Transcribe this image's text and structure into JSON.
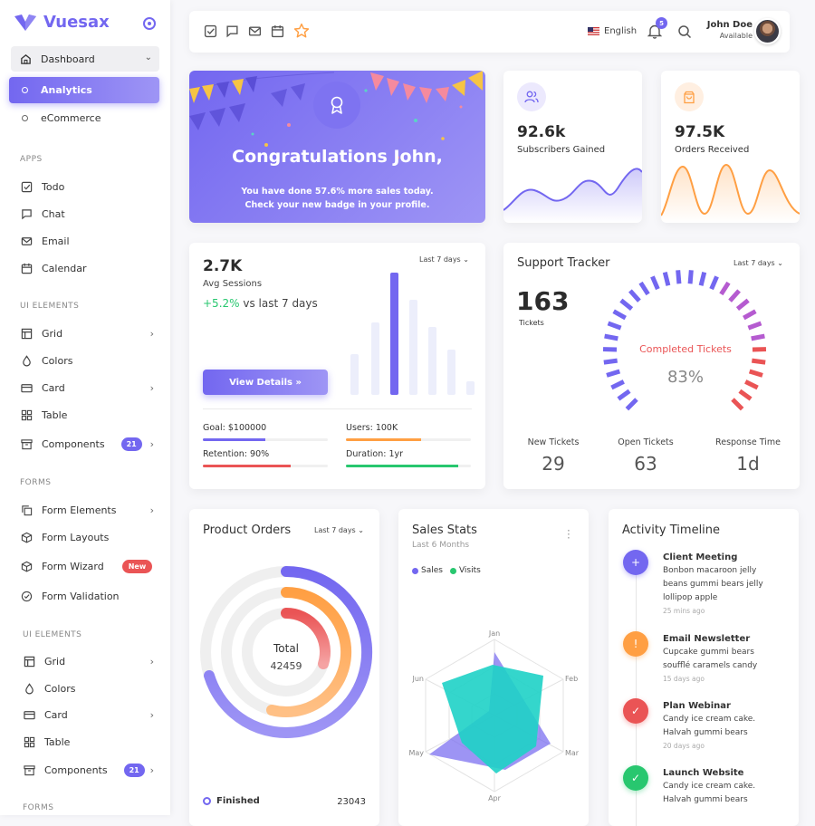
{
  "brand": {
    "name": "Vuesax"
  },
  "sidebar": {
    "dashboard": "Dashboard",
    "analytics": "Analytics",
    "ecommerce": "eCommerce",
    "sections": [
      "APPS",
      "UI ELEMENTS",
      "FORMS",
      "UI ELEMENTS",
      "FORMS"
    ],
    "apps": [
      "Todo",
      "Chat",
      "Email",
      "Calendar"
    ],
    "ui1": [
      "Grid",
      "Colors",
      "Card",
      "Table",
      "Components"
    ],
    "forms": [
      "Form Elements",
      "Form Layouts",
      "Form Wizard",
      "Form Validation"
    ],
    "ui2": [
      "Grid",
      "Colors",
      "Card",
      "Table",
      "Components"
    ],
    "components_badge": "21",
    "new_badge": "New"
  },
  "topbar": {
    "language": "English",
    "notif_count": "5",
    "user_name": "John Doe",
    "user_status": "Available"
  },
  "congrats": {
    "title": "Congratulations John,",
    "line1_pre": "You have done ",
    "line1_bold": "57.6%",
    "line1_post": " more sales today.",
    "line2": "Check your new badge in your profile."
  },
  "subscribers": {
    "value": "92.6k",
    "label": "Subscribers Gained"
  },
  "orders": {
    "value": "97.5K",
    "label": "Orders Received"
  },
  "sessions": {
    "value": "2.7K",
    "label": "Avg Sessions",
    "change": "+5.2%",
    "change_suffix": " vs last 7 days",
    "period": "Last 7 days",
    "button": "View Details »",
    "stats": [
      {
        "label": "Goal: $100000",
        "pct": 0.5,
        "color": "#7367f0"
      },
      {
        "label": "Users: 100K",
        "pct": 0.6,
        "color": "#ff9f43"
      },
      {
        "label": "Retention: 90%",
        "pct": 0.7,
        "color": "#ea5455"
      },
      {
        "label": "Duration: 1yr",
        "pct": 0.9,
        "color": "#28c76f"
      }
    ]
  },
  "support": {
    "title": "Support Tracker",
    "period": "Last 7 days",
    "tickets": "163",
    "tickets_label": "Tickets",
    "gauge_label": "Completed Tickets",
    "gauge_value": "83%",
    "stats": [
      {
        "label": "New Tickets",
        "value": "29"
      },
      {
        "label": "Open Tickets",
        "value": "63"
      },
      {
        "label": "Response Time",
        "value": "1d"
      }
    ]
  },
  "product_orders": {
    "title": "Product Orders",
    "period": "Last 7 days",
    "center_label": "Total",
    "center_value": "42459",
    "legend": "Finished",
    "legend_value": "23043"
  },
  "sales_stats": {
    "title": "Sales Stats",
    "subtitle": "Last 6 Months",
    "legend": [
      "Sales",
      "Visits"
    ],
    "axes": [
      "Jan",
      "Feb",
      "Mar",
      "Apr",
      "May",
      "Jun"
    ]
  },
  "timeline": {
    "title": "Activity Timeline",
    "items": [
      {
        "title": "Client Meeting",
        "body": [
          "Bonbon macaroon jelly",
          "beans gummi bears jelly",
          "lollipop apple"
        ],
        "time": "25 mins ago",
        "color": "#7367f0"
      },
      {
        "title": "Email Newsletter",
        "body": [
          "Cupcake gummi bears",
          "soufflé caramels candy"
        ],
        "time": "15 days ago",
        "color": "#ff9f43"
      },
      {
        "title": "Plan Webinar",
        "body": [
          "Candy ice cream cake.",
          "Halvah gummi bears"
        ],
        "time": "20 days ago",
        "color": "#ea5455"
      },
      {
        "title": "Launch Website",
        "body": [
          "Candy ice cream cake.",
          "Halvah gummi bears"
        ],
        "time": "",
        "color": "#28c76f"
      }
    ]
  }
}
